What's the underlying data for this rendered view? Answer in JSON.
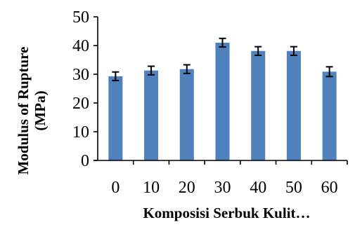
{
  "chart_data": {
    "type": "bar",
    "categories": [
      "0",
      "10",
      "20",
      "30",
      "40",
      "50",
      "60"
    ],
    "values": [
      29.3,
      31.3,
      31.8,
      41.0,
      38.1,
      38.1,
      30.9
    ],
    "errors": [
      1.5,
      1.5,
      1.5,
      1.5,
      1.5,
      1.5,
      1.7
    ],
    "ylim": [
      0,
      50
    ],
    "yticks": [
      "0",
      "10",
      "20",
      "30",
      "40",
      "50"
    ],
    "ylabel_line1": "Modulus of Rupture",
    "ylabel_line2": "(MPa)",
    "xlabel": "Komposisi Serbuk Kulit…",
    "bar_color": "#4F81BD",
    "grid": false,
    "legend": "none"
  }
}
